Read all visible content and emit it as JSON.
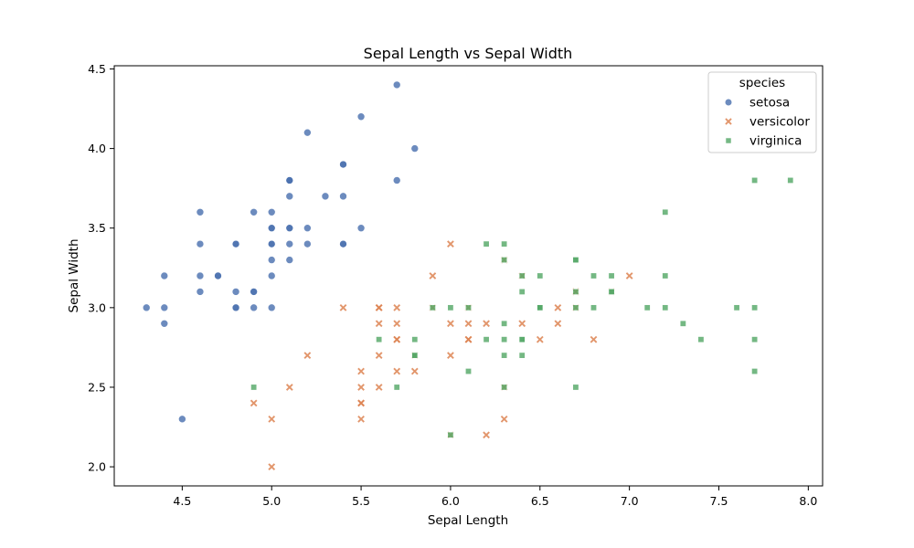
{
  "chart_data": {
    "type": "scatter",
    "title": "Sepal Length vs Sepal Width",
    "xlabel": "Sepal Length",
    "ylabel": "Sepal Width",
    "xlim": [
      4.12,
      8.08
    ],
    "ylim": [
      1.88,
      4.52
    ],
    "xticks": [
      4.5,
      5.0,
      5.5,
      6.0,
      6.5,
      7.0,
      7.5,
      8.0
    ],
    "yticks": [
      2.0,
      2.5,
      3.0,
      3.5,
      4.0,
      4.5
    ],
    "grid": false,
    "legend": {
      "title": "species",
      "position": "top-right"
    },
    "series": [
      {
        "name": "setosa",
        "marker": "circle",
        "color": "#4c72b0",
        "points": [
          [
            5.1,
            3.5
          ],
          [
            4.9,
            3.0
          ],
          [
            4.7,
            3.2
          ],
          [
            4.6,
            3.1
          ],
          [
            5.0,
            3.6
          ],
          [
            5.4,
            3.9
          ],
          [
            4.6,
            3.4
          ],
          [
            5.0,
            3.4
          ],
          [
            4.4,
            2.9
          ],
          [
            4.9,
            3.1
          ],
          [
            5.4,
            3.7
          ],
          [
            4.8,
            3.4
          ],
          [
            4.8,
            3.0
          ],
          [
            4.3,
            3.0
          ],
          [
            5.8,
            4.0
          ],
          [
            5.7,
            4.4
          ],
          [
            5.4,
            3.9
          ],
          [
            5.1,
            3.5
          ],
          [
            5.7,
            3.8
          ],
          [
            5.1,
            3.8
          ],
          [
            5.4,
            3.4
          ],
          [
            5.1,
            3.7
          ],
          [
            4.6,
            3.6
          ],
          [
            5.1,
            3.3
          ],
          [
            4.8,
            3.4
          ],
          [
            5.0,
            3.0
          ],
          [
            5.0,
            3.4
          ],
          [
            5.2,
            3.5
          ],
          [
            5.2,
            3.4
          ],
          [
            4.7,
            3.2
          ],
          [
            4.8,
            3.1
          ],
          [
            5.4,
            3.4
          ],
          [
            5.2,
            4.1
          ],
          [
            5.5,
            4.2
          ],
          [
            4.9,
            3.1
          ],
          [
            5.0,
            3.2
          ],
          [
            5.5,
            3.5
          ],
          [
            4.9,
            3.6
          ],
          [
            4.4,
            3.0
          ],
          [
            5.1,
            3.4
          ],
          [
            5.0,
            3.5
          ],
          [
            4.5,
            2.3
          ],
          [
            4.4,
            3.2
          ],
          [
            5.0,
            3.5
          ],
          [
            5.1,
            3.8
          ],
          [
            4.8,
            3.0
          ],
          [
            5.1,
            3.8
          ],
          [
            4.6,
            3.2
          ],
          [
            5.3,
            3.7
          ],
          [
            5.0,
            3.3
          ]
        ]
      },
      {
        "name": "versicolor",
        "marker": "x",
        "color": "#dd8452",
        "points": [
          [
            7.0,
            3.2
          ],
          [
            6.4,
            3.2
          ],
          [
            6.9,
            3.1
          ],
          [
            5.5,
            2.3
          ],
          [
            6.5,
            2.8
          ],
          [
            5.7,
            2.8
          ],
          [
            6.3,
            3.3
          ],
          [
            4.9,
            2.4
          ],
          [
            6.6,
            2.9
          ],
          [
            5.2,
            2.7
          ],
          [
            5.0,
            2.0
          ],
          [
            5.9,
            3.0
          ],
          [
            6.0,
            2.2
          ],
          [
            6.1,
            2.9
          ],
          [
            5.6,
            2.9
          ],
          [
            6.7,
            3.1
          ],
          [
            5.6,
            3.0
          ],
          [
            5.8,
            2.7
          ],
          [
            6.2,
            2.2
          ],
          [
            5.6,
            2.5
          ],
          [
            5.9,
            3.2
          ],
          [
            6.1,
            2.8
          ],
          [
            6.3,
            2.5
          ],
          [
            6.1,
            2.8
          ],
          [
            6.4,
            2.9
          ],
          [
            6.6,
            3.0
          ],
          [
            6.8,
            2.8
          ],
          [
            6.7,
            3.0
          ],
          [
            6.0,
            2.9
          ],
          [
            5.7,
            2.6
          ],
          [
            5.5,
            2.4
          ],
          [
            5.5,
            2.4
          ],
          [
            5.8,
            2.7
          ],
          [
            6.0,
            2.7
          ],
          [
            5.4,
            3.0
          ],
          [
            6.0,
            3.4
          ],
          [
            6.7,
            3.1
          ],
          [
            6.3,
            2.3
          ],
          [
            5.6,
            3.0
          ],
          [
            5.5,
            2.5
          ],
          [
            5.5,
            2.6
          ],
          [
            6.1,
            3.0
          ],
          [
            5.8,
            2.6
          ],
          [
            5.0,
            2.3
          ],
          [
            5.6,
            2.7
          ],
          [
            5.7,
            3.0
          ],
          [
            5.7,
            2.9
          ],
          [
            6.2,
            2.9
          ],
          [
            5.1,
            2.5
          ],
          [
            5.7,
            2.8
          ]
        ]
      },
      {
        "name": "virginica",
        "marker": "square",
        "color": "#55a868",
        "points": [
          [
            6.3,
            3.3
          ],
          [
            5.8,
            2.7
          ],
          [
            7.1,
            3.0
          ],
          [
            6.3,
            2.9
          ],
          [
            6.5,
            3.0
          ],
          [
            7.6,
            3.0
          ],
          [
            4.9,
            2.5
          ],
          [
            7.3,
            2.9
          ],
          [
            6.7,
            2.5
          ],
          [
            7.2,
            3.6
          ],
          [
            6.5,
            3.2
          ],
          [
            6.4,
            2.7
          ],
          [
            6.8,
            3.0
          ],
          [
            5.7,
            2.5
          ],
          [
            5.8,
            2.8
          ],
          [
            6.4,
            3.2
          ],
          [
            6.5,
            3.0
          ],
          [
            7.7,
            3.8
          ],
          [
            7.7,
            2.6
          ],
          [
            6.0,
            2.2
          ],
          [
            6.9,
            3.2
          ],
          [
            5.6,
            2.8
          ],
          [
            7.7,
            2.8
          ],
          [
            6.3,
            2.7
          ],
          [
            6.7,
            3.3
          ],
          [
            7.2,
            3.2
          ],
          [
            6.2,
            2.8
          ],
          [
            6.1,
            3.0
          ],
          [
            6.4,
            2.8
          ],
          [
            7.2,
            3.0
          ],
          [
            7.4,
            2.8
          ],
          [
            7.9,
            3.8
          ],
          [
            6.4,
            2.8
          ],
          [
            6.3,
            2.8
          ],
          [
            6.1,
            2.6
          ],
          [
            7.7,
            3.0
          ],
          [
            6.3,
            3.4
          ],
          [
            6.4,
            3.1
          ],
          [
            6.0,
            3.0
          ],
          [
            6.9,
            3.1
          ],
          [
            6.7,
            3.1
          ],
          [
            6.9,
            3.1
          ],
          [
            5.8,
            2.7
          ],
          [
            6.8,
            3.2
          ],
          [
            6.7,
            3.3
          ],
          [
            6.7,
            3.0
          ],
          [
            6.3,
            2.5
          ],
          [
            6.5,
            3.0
          ],
          [
            6.2,
            3.4
          ],
          [
            5.9,
            3.0
          ]
        ]
      }
    ]
  }
}
